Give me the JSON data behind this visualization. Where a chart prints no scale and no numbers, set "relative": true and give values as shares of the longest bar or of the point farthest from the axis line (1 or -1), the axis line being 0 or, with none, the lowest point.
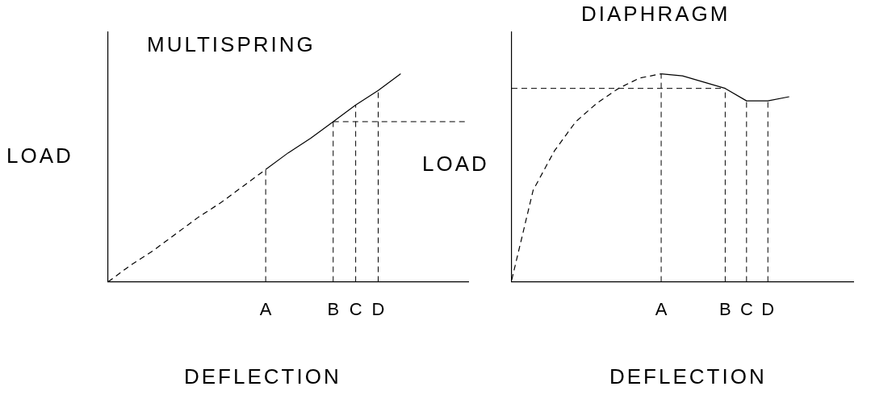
{
  "chart_data": [
    {
      "type": "line",
      "title": "MULTISPRING",
      "xlabel": "DEFLECTION",
      "ylabel": "LOAD",
      "relative": true,
      "legend": false,
      "grid": false,
      "categories": [
        null,
        null,
        null,
        null,
        null,
        null,
        null,
        "A",
        null,
        null,
        "B",
        "C",
        "D",
        null,
        null,
        null,
        null
      ],
      "series": [
        {
          "color": "#000000",
          "line_style": "dashed",
          "values": [
            0,
            0.08,
            0.15,
            0.23,
            0.31,
            0.38,
            0.46,
            0.54,
            null,
            null,
            null,
            null,
            null,
            null,
            null,
            null,
            null
          ]
        },
        {
          "color": "#000000",
          "line_style": "solid",
          "values": [
            null,
            null,
            null,
            null,
            null,
            null,
            null,
            0.54,
            0.62,
            0.69,
            0.77,
            0.85,
            0.92,
            1,
            null,
            null,
            null
          ]
        }
      ],
      "ref_lines": [
        {
          "axis": "x",
          "value": "A",
          "line_style": "dashed"
        },
        {
          "axis": "x",
          "value": "B",
          "line_style": "dashed"
        },
        {
          "axis": "x",
          "value": "C",
          "line_style": "dashed"
        },
        {
          "axis": "x",
          "value": "D",
          "line_style": "dashed"
        },
        {
          "axis": "y",
          "value": 0.77,
          "line_style": "dashed"
        }
      ]
    },
    {
      "type": "line",
      "title": "DIAPHRAGM",
      "xlabel": "DEFLECTION",
      "ylabel": "LOAD",
      "relative": true,
      "legend": false,
      "grid": false,
      "categories": [
        null,
        null,
        null,
        null,
        null,
        null,
        null,
        "A",
        null,
        null,
        "B",
        "C",
        "D",
        null,
        null,
        null,
        null
      ],
      "series": [
        {
          "color": "#000000",
          "line_style": "dashed",
          "values": [
            0.01,
            0.44,
            0.63,
            0.77,
            0.86,
            0.93,
            0.98,
            1,
            null,
            null,
            null,
            null,
            null,
            null,
            null,
            null,
            null
          ]
        },
        {
          "color": "#000000",
          "line_style": "solid",
          "values": [
            null,
            null,
            null,
            null,
            null,
            null,
            null,
            1,
            0.99,
            0.96,
            0.93,
            0.87,
            0.87,
            0.89,
            null,
            null,
            null
          ]
        }
      ],
      "ref_lines": [
        {
          "axis": "x",
          "value": "A",
          "line_style": "dashed"
        },
        {
          "axis": "x",
          "value": "B",
          "line_style": "dashed"
        },
        {
          "axis": "x",
          "value": "C",
          "line_style": "dashed"
        },
        {
          "axis": "x",
          "value": "D",
          "line_style": "dashed"
        },
        {
          "axis": "y",
          "value": 0.93,
          "line_style": "dashed"
        }
      ]
    }
  ]
}
